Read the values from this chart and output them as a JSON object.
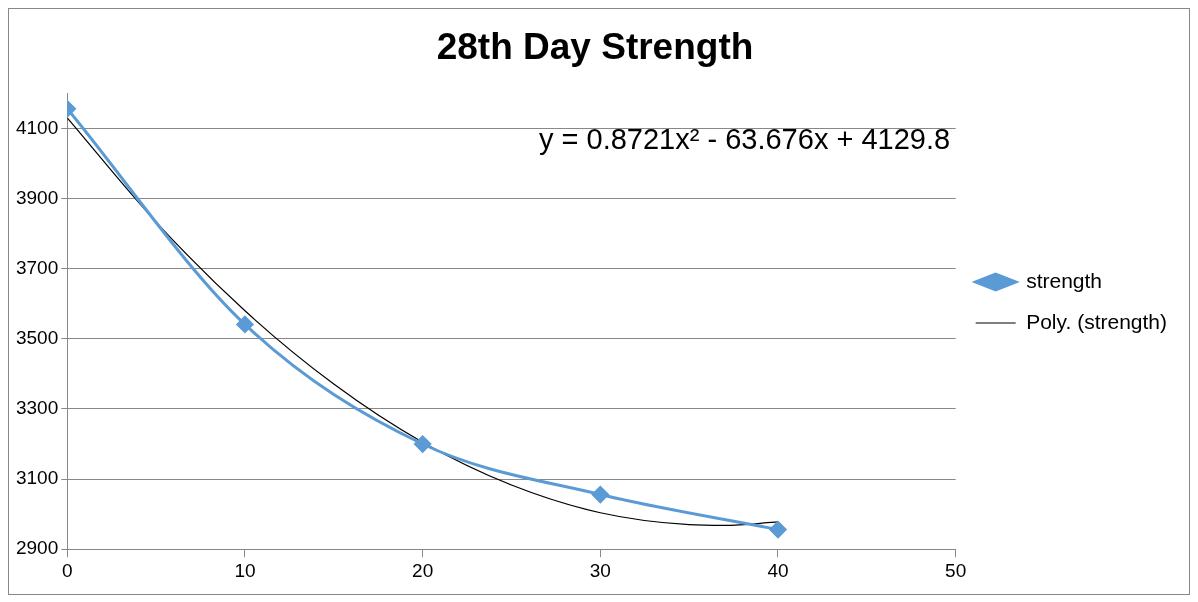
{
  "chart_data": {
    "type": "line",
    "title": "28th Day Strength",
    "annotations": [
      "y = 0.8721x² - 63.676x + 4129.8"
    ],
    "series": [
      {
        "name": "strength",
        "color": "#5b9bd5",
        "marker": "diamond",
        "x": [
          0,
          10,
          20,
          30,
          40
        ],
        "values": [
          4156,
          3541,
          3200,
          3056,
          2956
        ]
      },
      {
        "name": "Poly. (strength)",
        "color": "#000000",
        "marker": "none",
        "x": [
          0,
          5,
          10,
          15,
          20,
          25,
          30,
          35,
          37,
          40
        ],
        "values": [
          4130,
          3833,
          3580,
          3371,
          3205,
          3083,
          3004,
          2970,
          2968,
          2978
        ]
      }
    ],
    "xlim": [
      0,
      50
    ],
    "xticks": [
      0,
      10,
      20,
      30,
      40,
      50
    ],
    "ylim": [
      2900,
      4200
    ],
    "yticks": [
      2900,
      3100,
      3300,
      3500,
      3700,
      3900,
      4100
    ],
    "grid": "y",
    "legend": "right"
  }
}
